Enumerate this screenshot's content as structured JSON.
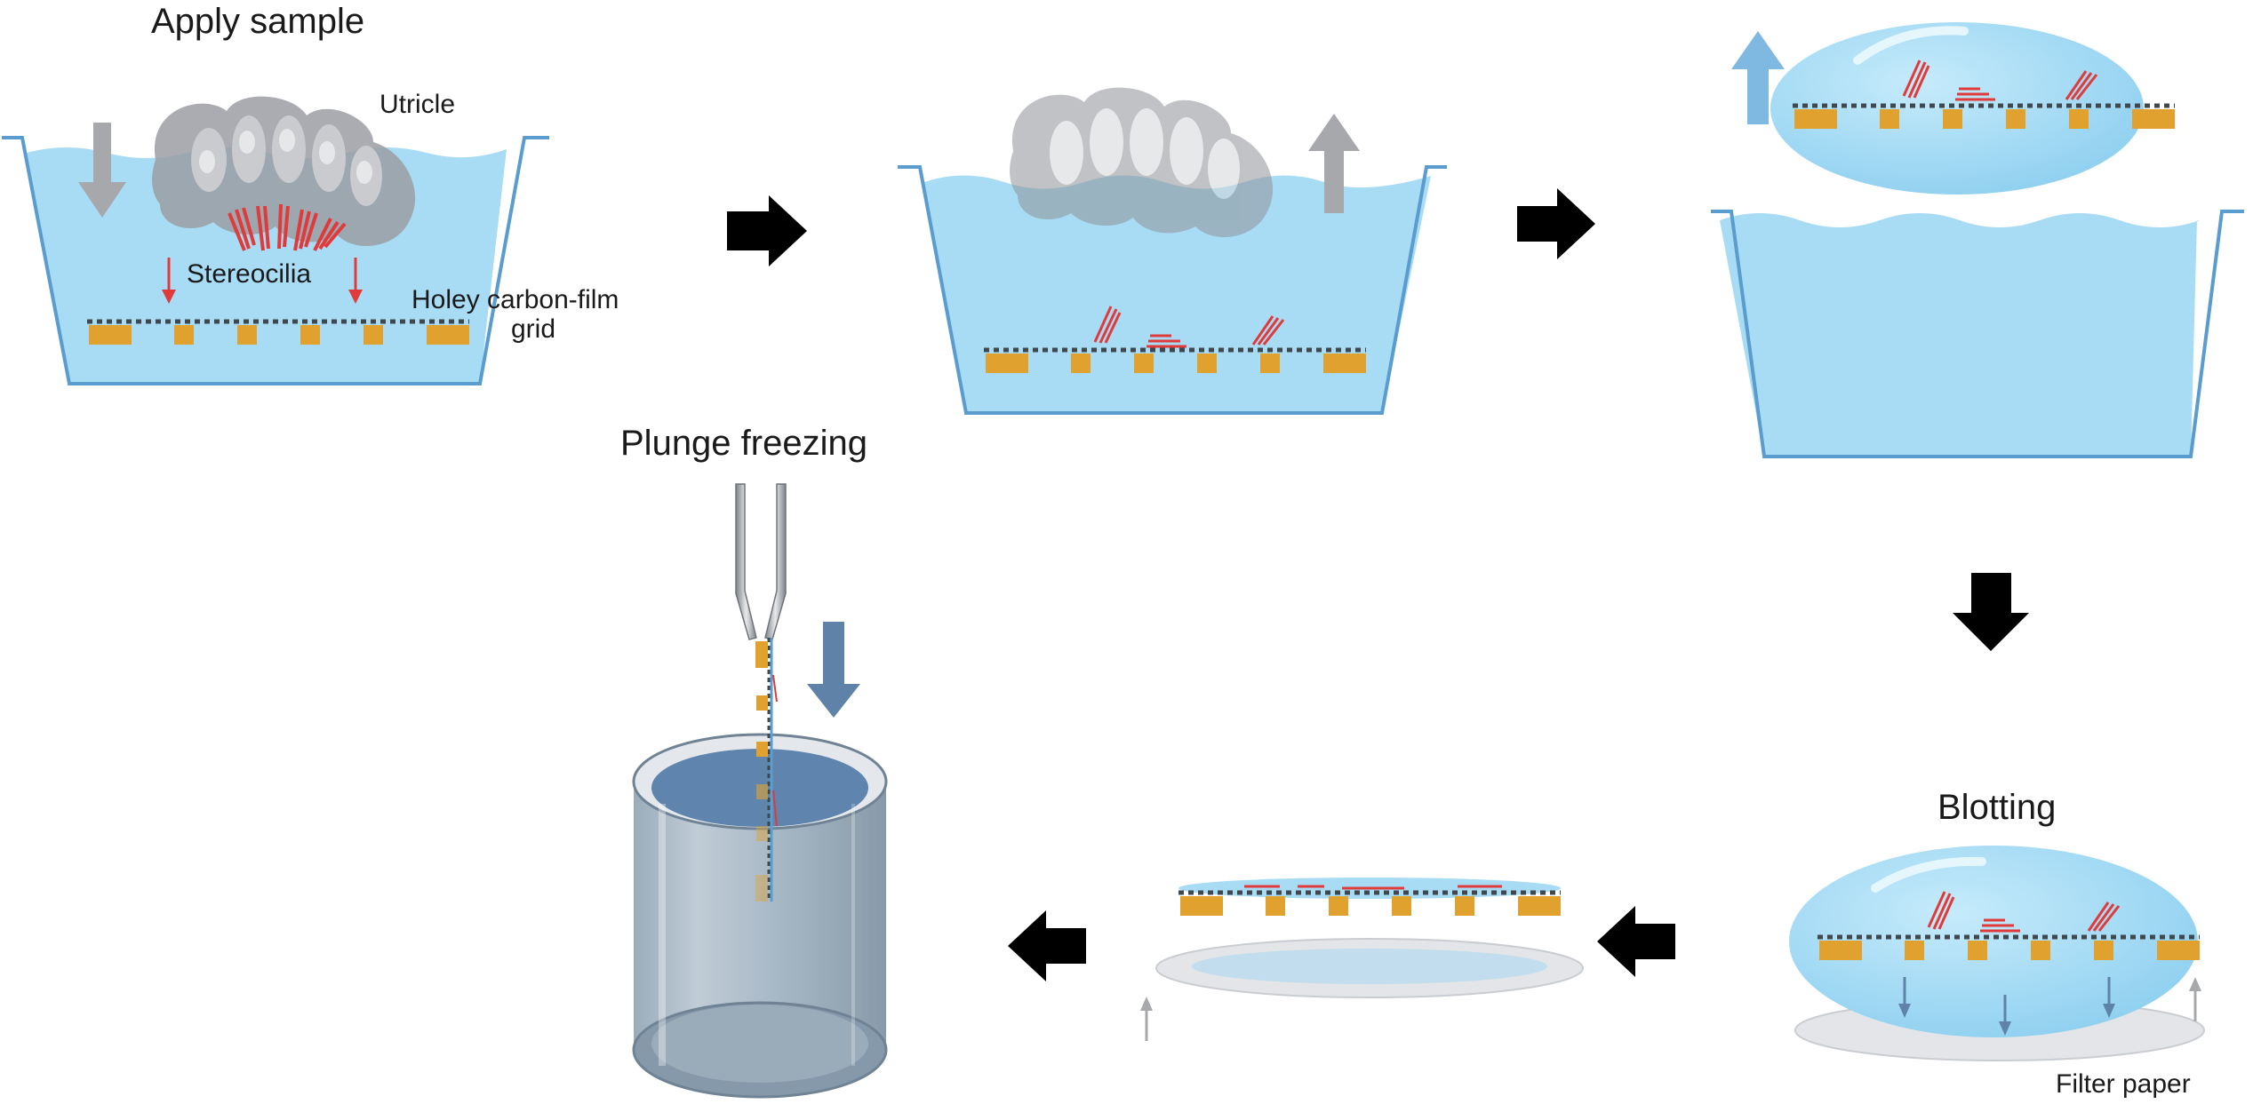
{
  "steps": {
    "apply_sample": "Apply sample",
    "plunge_freezing": "Plunge freezing",
    "blotting": "Blotting"
  },
  "labels": {
    "utricle": "Utricle",
    "stereocilia": "Stereocilia",
    "grid_line1": "Holey carbon-film",
    "grid_line2": "grid",
    "filter_paper": "Filter paper"
  },
  "colors": {
    "water": "#a8dcf5",
    "container_edge": "#5b9ccf",
    "grid_support": "#e0a12e",
    "stereocilia": "#e03a3a",
    "tissue": "#9b9ea3",
    "process_arrow": "#000000",
    "down_arrow": "#5e82a8",
    "lift_arrow": "#7fb8e0",
    "filter_paper": "#e3e5e8"
  }
}
